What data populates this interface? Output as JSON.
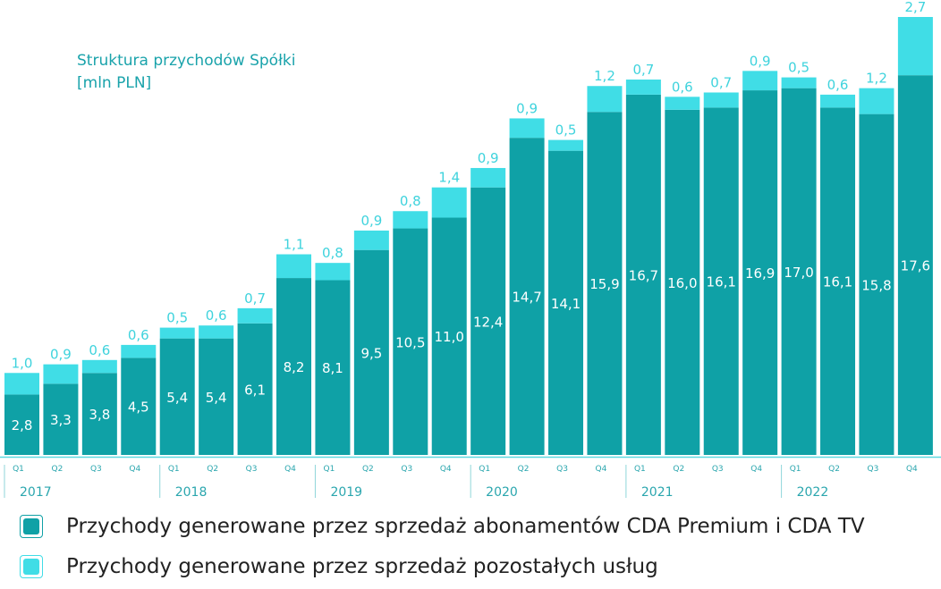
{
  "chart_data": {
    "type": "bar",
    "stacked": true,
    "title": "Struktura przychodów Spółki",
    "subtitle": "[mln PLN]",
    "categories": [
      "Q1",
      "Q2",
      "Q3",
      "Q4",
      "Q1",
      "Q2",
      "Q3",
      "Q4",
      "Q1",
      "Q2",
      "Q3",
      "Q4",
      "Q1",
      "Q2",
      "Q3",
      "Q4",
      "Q1",
      "Q2",
      "Q3",
      "Q4",
      "Q1",
      "Q2",
      "Q3",
      "Q4"
    ],
    "years": [
      "2017",
      "2018",
      "2019",
      "2020",
      "2021",
      "2022"
    ],
    "series": [
      {
        "name": "Przychody generowane przez sprzedaż abonamentów CDA Premium i CDA TV",
        "color": "#0fa1a6",
        "values": [
          2.8,
          3.3,
          3.8,
          4.5,
          5.4,
          5.4,
          6.1,
          8.2,
          8.1,
          9.5,
          10.5,
          11.0,
          12.4,
          14.7,
          14.1,
          15.9,
          16.7,
          16.0,
          16.1,
          16.9,
          17.0,
          16.1,
          15.8,
          17.6
        ]
      },
      {
        "name": "Przychody generowane przez sprzedaż pozostałych usług",
        "color": "#40dde6",
        "values": [
          1.0,
          0.9,
          0.6,
          0.6,
          0.5,
          0.6,
          0.7,
          1.1,
          0.8,
          0.9,
          0.8,
          1.4,
          0.9,
          0.9,
          0.5,
          1.2,
          0.7,
          0.6,
          0.7,
          0.9,
          0.5,
          0.6,
          1.2,
          2.7
        ]
      }
    ],
    "ylim": [
      0,
      20.3
    ],
    "grid": false,
    "legend": "bottom-left"
  }
}
